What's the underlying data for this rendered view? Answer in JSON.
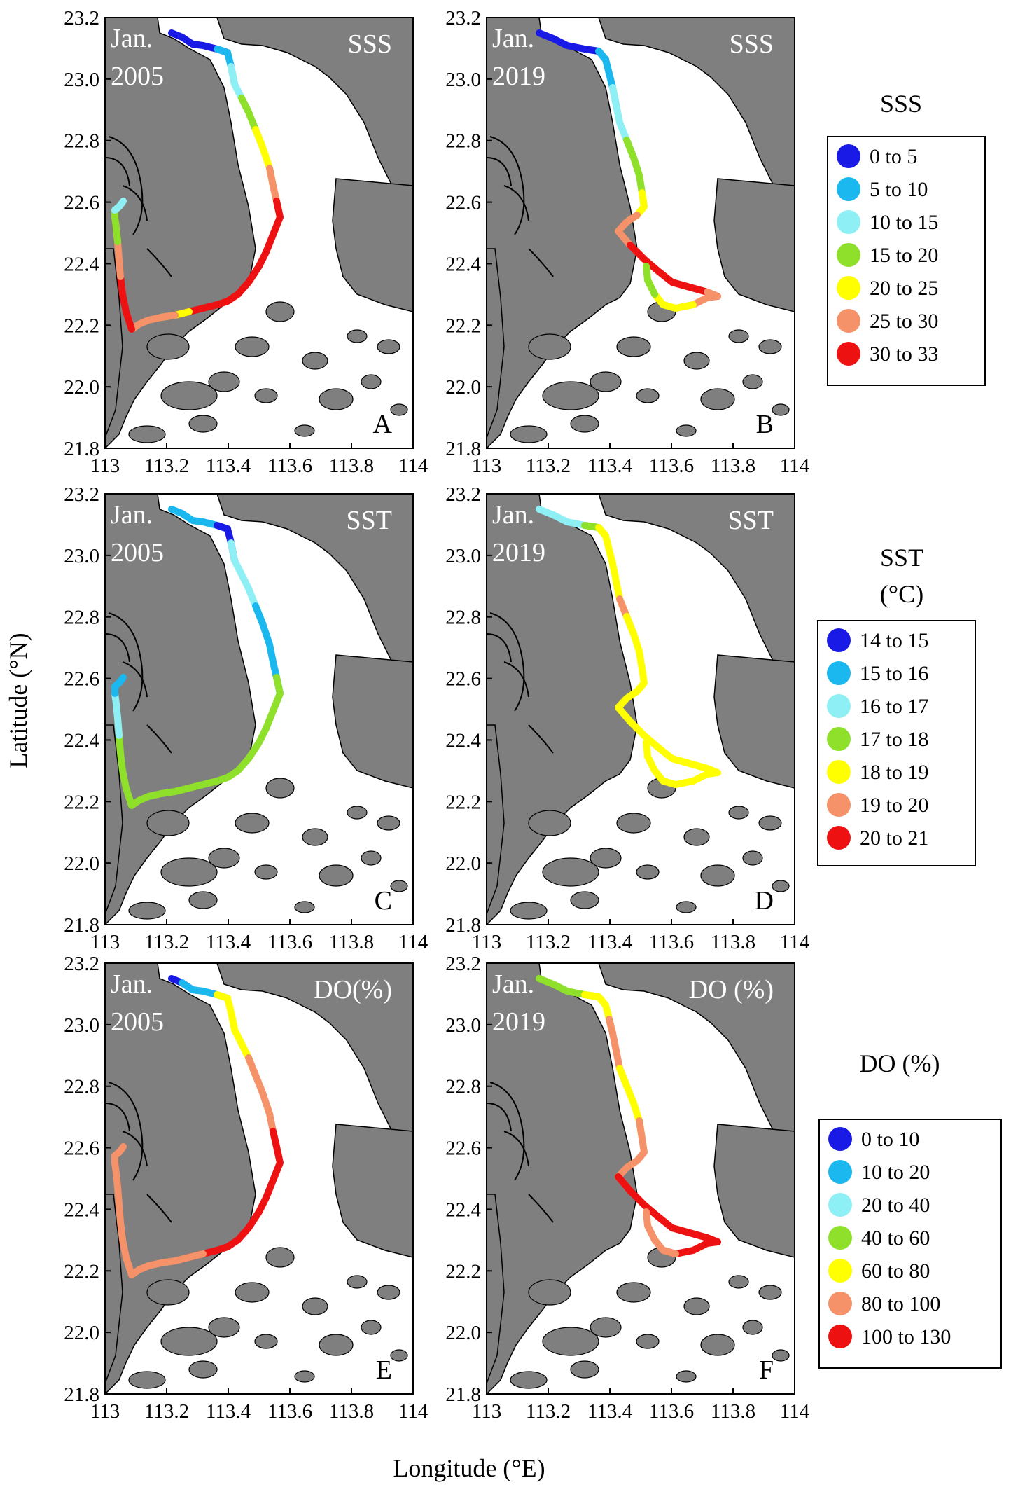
{
  "axes": {
    "ylabel": "Latitude (°N)",
    "xlabel": "Longitude (°E)",
    "y_ticks": [
      "23.2",
      "23.0",
      "22.8",
      "22.6",
      "22.4",
      "22.2",
      "22.0",
      "21.8"
    ],
    "x_ticks": [
      "113",
      "113.2",
      "113.4",
      "113.6",
      "113.8",
      "114"
    ],
    "xlim": [
      113.0,
      114.0
    ],
    "ylim": [
      21.8,
      23.2
    ]
  },
  "colors": {
    "land": "#7f7f7f",
    "water": "#ffffff"
  },
  "panels": [
    {
      "id": "A",
      "variable": "SSS",
      "label": "SSS",
      "date_line1": "Jan.",
      "date_line2": "2005",
      "letter": "A",
      "segments": [
        {
          "from": 0,
          "to": 5,
          "cls": 0
        },
        {
          "from": 4,
          "to": 7,
          "cls": 1
        },
        {
          "from": 6,
          "to": 9,
          "cls": 2
        },
        {
          "from": 8,
          "to": 11,
          "cls": 3
        },
        {
          "from": 10,
          "to": 13,
          "cls": 4
        },
        {
          "from": 12,
          "to": 15,
          "cls": 5
        },
        {
          "from": 14,
          "to": 25,
          "cls": 6
        },
        {
          "from": 24,
          "to": 26,
          "cls": 4
        },
        {
          "from": 25,
          "to": 30,
          "cls": 5
        },
        {
          "from": 29,
          "to": 33,
          "cls": 6
        },
        {
          "from": 32,
          "to": 35,
          "cls": 5
        },
        {
          "from": 34,
          "to": 38,
          "cls": 3
        },
        {
          "from": 37,
          "to": 40,
          "cls": 2
        }
      ]
    },
    {
      "id": "B",
      "variable": "SSS",
      "label": "SSS",
      "date_line1": "Jan.",
      "date_line2": "2019",
      "letter": "B",
      "segments": [
        {
          "from": 0,
          "to": 5,
          "cls": 0
        },
        {
          "from": 4,
          "to": 8,
          "cls": 1
        },
        {
          "from": 7,
          "to": 11,
          "cls": 2
        },
        {
          "from": 10,
          "to": 14,
          "cls": 3
        },
        {
          "from": 13,
          "to": 16,
          "cls": 4
        },
        {
          "from": 15,
          "to": 19,
          "cls": 5
        },
        {
          "from": 18,
          "to": 24,
          "cls": 6
        },
        {
          "from": 23,
          "to": 27,
          "cls": 5
        },
        {
          "from": 26,
          "to": 30,
          "cls": 4
        },
        {
          "from": 29,
          "to": 32,
          "cls": 3
        }
      ]
    },
    {
      "id": "C",
      "variable": "SST",
      "label": "SST",
      "date_line1": "Jan.",
      "date_line2": "2005",
      "letter": "C",
      "segments": [
        {
          "from": 0,
          "to": 5,
          "cls": 1
        },
        {
          "from": 4,
          "to": 7,
          "cls": 0
        },
        {
          "from": 6,
          "to": 11,
          "cls": 2
        },
        {
          "from": 10,
          "to": 15,
          "cls": 1
        },
        {
          "from": 14,
          "to": 25,
          "cls": 3
        },
        {
          "from": 24,
          "to": 34,
          "cls": 3
        },
        {
          "from": 33,
          "to": 37,
          "cls": 2
        },
        {
          "from": 36,
          "to": 40,
          "cls": 1
        }
      ]
    },
    {
      "id": "D",
      "variable": "SST",
      "label": "SST",
      "date_line1": "Jan.",
      "date_line2": "2019",
      "letter": "D",
      "segments": [
        {
          "from": 0,
          "to": 4,
          "cls": 2
        },
        {
          "from": 3,
          "to": 5,
          "cls": 3
        },
        {
          "from": 4,
          "to": 10,
          "cls": 4
        },
        {
          "from": 9,
          "to": 11,
          "cls": 5
        },
        {
          "from": 10,
          "to": 32,
          "cls": 4
        }
      ]
    },
    {
      "id": "E",
      "variable": "DO",
      "label": "DO(%)",
      "date_line1": "Jan.",
      "date_line2": "2005",
      "letter": "E",
      "segments": [
        {
          "from": 0,
          "to": 2,
          "cls": 0
        },
        {
          "from": 1,
          "to": 5,
          "cls": 1
        },
        {
          "from": 4,
          "to": 7,
          "cls": 4
        },
        {
          "from": 6,
          "to": 10,
          "cls": 4
        },
        {
          "from": 9,
          "to": 14,
          "cls": 5
        },
        {
          "from": 13,
          "to": 24,
          "cls": 6
        },
        {
          "from": 23,
          "to": 28,
          "cls": 5
        },
        {
          "from": 27,
          "to": 40,
          "cls": 5
        }
      ]
    },
    {
      "id": "F",
      "variable": "DO",
      "label": "DO (%)",
      "date_line1": "Jan.",
      "date_line2": "2019",
      "letter": "F",
      "segments": [
        {
          "from": 0,
          "to": 4,
          "cls": 3
        },
        {
          "from": 3,
          "to": 7,
          "cls": 4
        },
        {
          "from": 6,
          "to": 10,
          "cls": 5
        },
        {
          "from": 9,
          "to": 13,
          "cls": 4
        },
        {
          "from": 12,
          "to": 18,
          "cls": 5
        },
        {
          "from": 17,
          "to": 24,
          "cls": 6
        },
        {
          "from": 23,
          "to": 28,
          "cls": 6
        },
        {
          "from": 27,
          "to": 32,
          "cls": 5
        }
      ]
    }
  ],
  "legends": [
    {
      "id": "SSS",
      "title_line1": "SSS",
      "title_line2": "",
      "items": [
        {
          "label": "0 to 5",
          "color": "#1a1ae6"
        },
        {
          "label": "5 to 10",
          "color": "#1ab8ee"
        },
        {
          "label": "10 to 15",
          "color": "#8ef0f5"
        },
        {
          "label": "15 to 20",
          "color": "#8fe02a"
        },
        {
          "label": "20 to 25",
          "color": "#ffff00"
        },
        {
          "label": "25 to 30",
          "color": "#f5926a"
        },
        {
          "label": "30 to 33",
          "color": "#ee1111"
        }
      ]
    },
    {
      "id": "SST",
      "title_line1": "SST",
      "title_line2": "(°C)",
      "items": [
        {
          "label": "14 to 15",
          "color": "#1a1ae6"
        },
        {
          "label": "15 to 16",
          "color": "#1ab8ee"
        },
        {
          "label": "16 to 17",
          "color": "#8ef0f5"
        },
        {
          "label": "17 to 18",
          "color": "#8fe02a"
        },
        {
          "label": "18 to 19",
          "color": "#ffff00"
        },
        {
          "label": "19 to 20",
          "color": "#f5926a"
        },
        {
          "label": "20 to 21",
          "color": "#ee1111"
        }
      ]
    },
    {
      "id": "DO",
      "title_line1": "DO (%)",
      "title_line2": "",
      "items": [
        {
          "label": "0 to 10",
          "color": "#1a1ae6"
        },
        {
          "label": "10 to 20",
          "color": "#1ab8ee"
        },
        {
          "label": "20 to 40",
          "color": "#8ef0f5"
        },
        {
          "label": "40 to 60",
          "color": "#8fe02a"
        },
        {
          "label": "60 to 80",
          "color": "#ffff00"
        },
        {
          "label": "80 to 100",
          "color": "#f5926a"
        },
        {
          "label": "100 to 130",
          "color": "#ee1111"
        }
      ]
    }
  ]
}
